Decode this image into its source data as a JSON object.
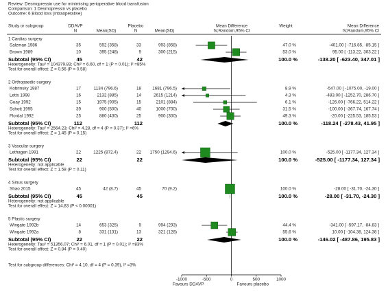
{
  "chart_data": {
    "type": "forest",
    "review": "Review:  Desmopressin use for minimising perioperative blood transfusion",
    "comparison": "Comparison:  1 Desmopressin vs placebo",
    "outcome": "Outcome:  6 Blood loss (intraoperative)",
    "headers": {
      "study": "Study or subgroup",
      "ddavp": "DDAVP",
      "ddavp_n": "N",
      "ddavp_mean": "Mean(SD)",
      "placebo": "Placebo",
      "placebo_n": "N",
      "placebo_mean": "Mean(SD)",
      "plot_title": "Mean Difference",
      "plot_method": "IV,Random,95% CI",
      "weight": "Weight",
      "md_title": "Mean Difference",
      "md_method": "IV,Random,95% CI"
    },
    "color": "#1f8a1f",
    "xlim": [
      -1000,
      1000
    ],
    "xticks": [
      -1000,
      -500,
      0,
      500,
      1000
    ],
    "axis_labels": [
      "Favours DDAVP",
      "Favours placebo"
    ],
    "groups": [
      {
        "title": "1 Cardiac surgery",
        "studies": [
          {
            "name": "Salzman 1986",
            "ddavp_n": 35,
            "ddavp_mean_sd": "592 (358)",
            "placebo_n": 33,
            "placebo_mean_sd": "993 (858)",
            "weight": 47.0,
            "weight_label": "47.0 %",
            "md": -401.0,
            "ci": [
              -716.85,
              -85.15
            ],
            "md_label": "-401.00 [ -716.85, -85.15 ]"
          },
          {
            "name": "Brown 1989",
            "ddavp_n": 10,
            "ddavp_mean_sd": "395 (248)",
            "placebo_n": 9,
            "placebo_mean_sd": "300 (215)",
            "weight": 53.0,
            "weight_label": "53.0 %",
            "md": 95.0,
            "ci": [
              -113.22,
              303.22
            ],
            "md_label": "95.00 [ -113.22, 303.22 ]"
          }
        ],
        "subtotal": {
          "label": "Subtotal (95% CI)",
          "ddavp_n": 45,
          "placebo_n": 42,
          "weight": 100.0,
          "weight_label": "100.0 %",
          "md": -138.2,
          "ci": [
            -623.4,
            347.01
          ],
          "md_label": "-138.20 [ -623.40, 347.01 ]"
        },
        "heterogeneity": "Heterogeneity: Tau² = 104379.83; Chi² = 6.60, df = 1 (P = 0.01); I² =85%",
        "overall": "Test for overall effect: Z = 0.56 (P = 0.58)"
      },
      {
        "title": "2 Orthopaedic surgery",
        "studies": [
          {
            "name": "Kobrinsky 1987",
            "ddavp_n": 17,
            "ddavp_mean_sd": "1134 (796.6)",
            "placebo_n": 18,
            "placebo_mean_sd": "1681 (796.5)",
            "weight": 8.9,
            "weight_label": "8.9 %",
            "md": -547.0,
            "ci": [
              -1075.0,
              -19.0
            ],
            "md_label": "-547.00 [ -1075.00, -19.00 ]"
          },
          {
            "name": "Letts 1998",
            "ddavp_n": 16,
            "ddavp_mean_sd": "2132 (885)",
            "placebo_n": 14,
            "placebo_mean_sd": "2615 (1214)",
            "weight": 4.3,
            "weight_label": "4.3 %",
            "md": -483.0,
            "ci": [
              -1252.7,
              286.7
            ],
            "md_label": "-483.00 [ -1252.70, 286.70 ]"
          },
          {
            "name": "Guay 1992",
            "ddavp_n": 15,
            "ddavp_mean_sd": "1975 (905)",
            "placebo_n": 15,
            "placebo_mean_sd": "2101 (884)",
            "weight": 6.1,
            "weight_label": "6.1 %",
            "md": -126.0,
            "ci": [
              -766.22,
              514.22
            ],
            "md_label": "-126.00 [ -766.22, 514.22 ]"
          },
          {
            "name": "Schott 1995",
            "ddavp_n": 39,
            "ddavp_mean_sd": "900 (500)",
            "placebo_n": 40,
            "placebo_mean_sd": "1000 (700)",
            "weight": 31.5,
            "weight_label": "31.5 %",
            "md": -100.0,
            "ci": [
              -367.74,
              167.74
            ],
            "md_label": "-100.00 [ -367.74, 167.74 ]"
          },
          {
            "name": "Flordal 1992",
            "ddavp_n": 25,
            "ddavp_mean_sd": "880 (430)",
            "placebo_n": 25,
            "placebo_mean_sd": "900 (300)",
            "weight": 49.3,
            "weight_label": "49.3 %",
            "md": -20.0,
            "ci": [
              -225.53,
              185.53
            ],
            "md_label": "-20.00 [ -225.53, 185.53 ]"
          }
        ],
        "subtotal": {
          "label": "Subtotal (95% CI)",
          "ddavp_n": 112,
          "placebo_n": 112,
          "weight": 100.0,
          "weight_label": "100.0 %",
          "md": -118.24,
          "ci": [
            -278.43,
            41.95
          ],
          "md_label": "-118.24 [ -278.43, 41.95 ]"
        },
        "heterogeneity": "Heterogeneity: Tau² = 2564.23; Chi² = 4.28, df = 4 (P = 0.37); I² =6%",
        "overall": "Test for overall effect: Z = 1.45 (P = 0.15)"
      },
      {
        "title": "3 Vascular surgery",
        "studies": [
          {
            "name": "Lethagen 1991",
            "ddavp_n": 22,
            "ddavp_mean_sd": "1225 (872.4)",
            "placebo_n": 22,
            "placebo_mean_sd": "1750 (1294.6)",
            "weight": 100.0,
            "weight_label": "100.0 %",
            "md": -525.0,
            "ci": [
              -1177.34,
              127.34
            ],
            "md_label": "-525.00 [ -1177.34, 127.34 ]"
          }
        ],
        "subtotal": {
          "label": "Subtotal (95% CI)",
          "ddavp_n": 22,
          "placebo_n": 22,
          "weight": 100.0,
          "weight_label": "100.0 %",
          "md": -525.0,
          "ci": [
            -1177.34,
            127.34
          ],
          "md_label": "-525.00 [ -1177.34, 127.34 ]"
        },
        "heterogeneity": "Heterogeneity: not applicable",
        "overall": "Test for overall effect: Z = 1.58 (P = 0.11)"
      },
      {
        "title": "4 Sinus surgery",
        "studies": [
          {
            "name": "Shao 2015",
            "ddavp_n": 45,
            "ddavp_mean_sd": "42 (8.7)",
            "placebo_n": 45,
            "placebo_mean_sd": "70 (9.2)",
            "weight": 100.0,
            "weight_label": "100.0 %",
            "md": -28.0,
            "ci": [
              -31.7,
              -24.3
            ],
            "md_label": "-28.00 [ -31.70, -24.30 ]"
          }
        ],
        "subtotal": {
          "label": "Subtotal (95% CI)",
          "ddavp_n": 45,
          "placebo_n": 45,
          "weight": 100.0,
          "weight_label": "100.0 %",
          "md": -28.0,
          "ci": [
            -31.7,
            -24.3
          ],
          "md_label": "-28.00 [ -31.70, -24.30 ]"
        },
        "heterogeneity": "Heterogeneity: not applicable",
        "overall": "Test for overall effect: Z = 14.83 (P < 0.00001)"
      },
      {
        "title": "5 Plastic surgery",
        "studies": [
          {
            "name": "Wingate 1992b",
            "ddavp_n": 14,
            "ddavp_mean_sd": "653 (325)",
            "placebo_n": 9,
            "placebo_mean_sd": "994 (293)",
            "weight": 44.4,
            "weight_label": "44.4 %",
            "md": -341.0,
            "ci": [
              -597.17,
              -84.83
            ],
            "md_label": "-341.00 [ -597.17, -84.83 ]"
          },
          {
            "name": "Wingate 1992a",
            "ddavp_n": 8,
            "ddavp_mean_sd": "331 (131)",
            "placebo_n": 13,
            "placebo_mean_sd": "321 (128)",
            "weight": 55.6,
            "weight_label": "55.6 %",
            "md": 10.0,
            "ci": [
              -104.38,
              124.38
            ],
            "md_label": "10.00 [ -104.38, 124.38 ]"
          }
        ],
        "subtotal": {
          "label": "Subtotal (95% CI)",
          "ddavp_n": 22,
          "placebo_n": 22,
          "weight": 100.0,
          "weight_label": "100.0 %",
          "md": -146.02,
          "ci": [
            -487.86,
            195.83
          ],
          "md_label": "-146.02 [ -487.86, 195.83 ]"
        },
        "heterogeneity": "Heterogeneity: Tau² = 51356.07; Chi² = 6.01, df = 1 (P = 0.01); I² =83%",
        "overall": "Test for overall effect: Z = 0.84 (P = 0.40)"
      }
    ],
    "subgroup_test": "Test for subgroup differences: Chi² = 4.10, df = 4 (P = 0.39), I² =3%"
  }
}
